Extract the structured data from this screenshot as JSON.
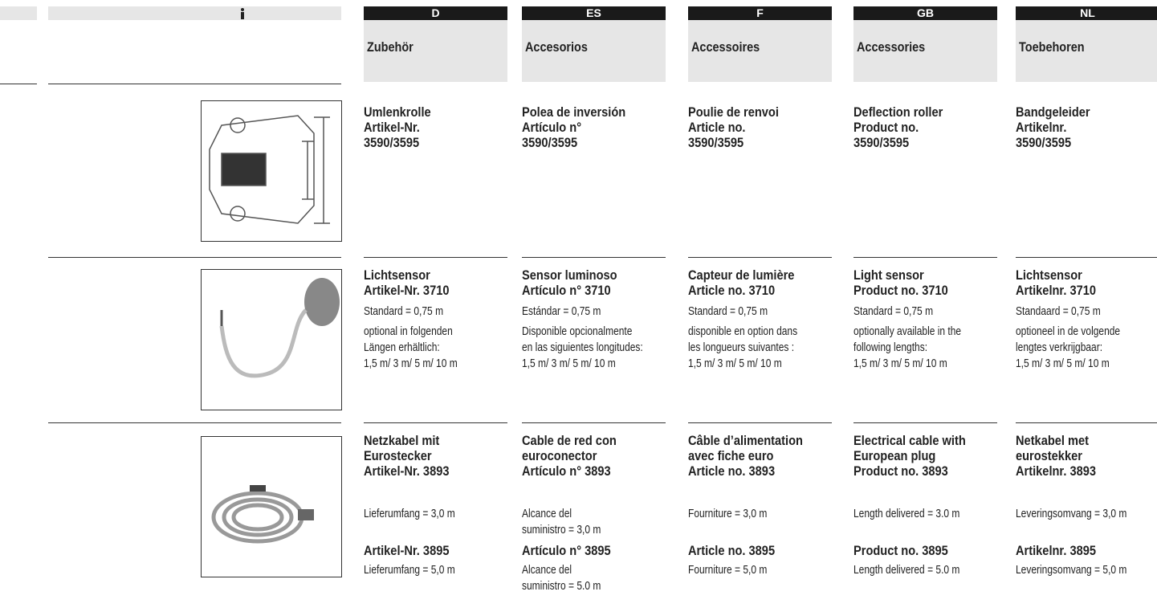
{
  "columns": [
    {
      "header": "D",
      "title": "Zubehör",
      "rows": [
        [
          [
            "Umlenkrolle",
            "Artikel-Nr.",
            "3590/3595"
          ]
        ],
        [
          [
            "Lichtsensor",
            "Artikel-Nr. 3710"
          ],
          [
            "Standard = 0,75 m"
          ],
          [
            "optional in folgenden",
            "Längen erhältlich:",
            "1,5 m/ 3 m/ 5 m/ 10 m"
          ]
        ],
        [
          [
            "Netzkabel mit",
            "Eurostecker",
            "Artikel-Nr. 3893"
          ],
          [
            "Lieferumfang = 3,0 m"
          ],
          [
            "Artikel-Nr. 3895"
          ],
          [
            "Lieferumfang = 5,0 m"
          ]
        ]
      ]
    },
    {
      "header": "ES",
      "title": "Accesorios",
      "rows": [
        [
          [
            "Polea de inversión",
            "Artículo n°",
            "3590/3595"
          ]
        ],
        [
          [
            "Sensor luminoso",
            "Artículo n°  3710"
          ],
          [
            "Estándar = 0,75 m"
          ],
          [
            "Disponible opcionalmente",
            "en las siguientes longitudes:",
            "1,5 m/ 3 m/ 5 m/ 10 m"
          ]
        ],
        [
          [
            "Cable de red con",
            "euroconector",
            "Artículo n° 3893"
          ],
          [
            "Alcance del",
            "suministro = 3,0 m"
          ],
          [
            "Artículo n° 3895"
          ],
          [
            "Alcance del",
            "suministro = 5.0 m"
          ]
        ]
      ]
    },
    {
      "header": "F",
      "title": "Accessoires",
      "rows": [
        [
          [
            "Poulie de renvoi",
            "Article no.",
            "3590/3595"
          ]
        ],
        [
          [
            "Capteur de lumière",
            "Article no. 3710"
          ],
          [
            "Standard = 0,75 m"
          ],
          [
            "disponible en option dans",
            "les longueurs suivantes :",
            "1,5 m/ 3 m/ 5 m/ 10 m"
          ]
        ],
        [
          [
            "Câble d’alimentation",
            "avec fiche euro",
            "Article no. 3893"
          ],
          [
            "Fourniture = 3,0 m"
          ],
          [
            "Article no. 3895"
          ],
          [
            "Fourniture = 5,0 m"
          ]
        ]
      ]
    },
    {
      "header": "GB",
      "title": "Accessories",
      "rows": [
        [
          [
            "Deflection roller",
            "Product no.",
            "3590/3595"
          ]
        ],
        [
          [
            "Light sensor",
            "Product no. 3710"
          ],
          [
            "Standard = 0,75 m"
          ],
          [
            "optionally available in the",
            "following lengths:",
            "1,5 m/ 3 m/ 5 m/ 10 m"
          ]
        ],
        [
          [
            "Electrical cable with",
            "European plug",
            "Product no. 3893"
          ],
          [
            "Length delivered = 3.0 m"
          ],
          [
            "Product no. 3895"
          ],
          [
            "Length delivered = 5.0 m"
          ]
        ]
      ]
    },
    {
      "header": "NL",
      "title": "Toebehoren",
      "rows": [
        [
          [
            "Bandgeleider",
            "Artikelnr.",
            "3590/3595"
          ]
        ],
        [
          [
            "Lichtsensor",
            "Artikelnr.  3710"
          ],
          [
            "Standaard = 0,75 m"
          ],
          [
            "optioneel in de volgende",
            "lengtes verkrijgbaar:",
            "1,5 m/ 3 m/ 5 m/ 10 m"
          ]
        ],
        [
          [
            "Netkabel met",
            "eurostekker",
            "Artikelnr. 3893"
          ],
          [
            "Leveringsomvang = 3,0 m"
          ],
          [
            "Artikelnr. 3895"
          ],
          [
            "Leveringsomvang = 5,0 m"
          ]
        ]
      ]
    }
  ]
}
